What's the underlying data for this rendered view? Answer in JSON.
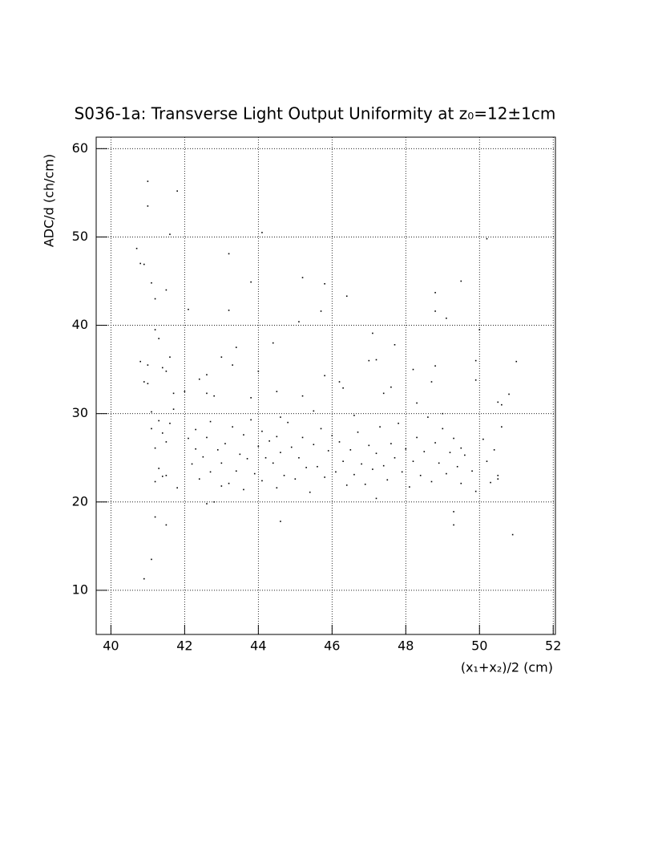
{
  "chart_data": {
    "type": "scatter",
    "title": "S036-1a: Transverse Light Output Uniformity at z₀=12±1cm",
    "xlabel": "(x₁+x₂)/2 (cm)",
    "ylabel": "ADC/d (ch/cm)",
    "color": "#000000",
    "grid": true,
    "xlim": [
      39.6,
      52.06
    ],
    "ylim": [
      5,
      61.3
    ],
    "xticks": [
      40,
      42,
      44,
      46,
      48,
      50,
      52
    ],
    "yticks": [
      10,
      20,
      30,
      40,
      50,
      60
    ],
    "x": [
      41.0,
      41.0,
      41.8,
      41.6,
      40.7,
      40.8,
      40.9,
      41.1,
      41.2,
      41.5,
      42.1,
      43.2,
      43.2,
      43.8,
      44.1,
      45.2,
      45.1,
      45.7,
      45.8,
      46.4,
      48.8,
      48.8,
      49.1,
      49.5,
      50.2,
      50.0,
      41.2,
      41.3,
      40.8,
      40.9,
      41.0,
      41.0,
      41.4,
      41.5,
      41.6,
      41.7,
      41.7,
      41.1,
      41.3,
      41.4,
      41.5,
      41.6,
      41.1,
      41.2,
      41.3,
      41.4,
      41.2,
      41.5,
      41.2,
      41.5,
      41.1,
      40.9,
      41.8,
      42.0,
      42.4,
      42.6,
      42.8,
      42.6,
      43.0,
      43.3,
      43.4,
      43.8,
      44.0,
      44.4,
      44.5,
      44.6,
      45.2,
      45.5,
      45.8,
      46.2,
      46.3,
      46.6,
      47.0,
      47.1,
      47.2,
      47.4,
      47.6,
      47.7,
      48.2,
      48.3,
      48.7,
      48.8,
      49.0,
      49.9,
      49.9,
      50.5,
      50.6,
      51.0,
      50.8,
      49.3,
      49.3,
      50.9,
      44.6,
      42.6,
      43.0,
      42.1,
      42.2,
      42.3,
      42.3,
      42.4,
      42.5,
      42.6,
      42.7,
      42.7,
      42.8,
      42.9,
      43.0,
      43.1,
      43.2,
      43.3,
      43.4,
      43.5,
      43.6,
      43.6,
      43.7,
      43.8,
      43.9,
      44.0,
      44.1,
      44.1,
      44.2,
      44.3,
      44.4,
      44.5,
      44.5,
      44.6,
      44.7,
      44.8,
      44.9,
      45.0,
      45.1,
      45.2,
      45.3,
      45.4,
      45.5,
      45.6,
      45.7,
      45.8,
      45.9,
      46.0,
      46.1,
      46.2,
      46.3,
      46.4,
      46.5,
      46.6,
      46.7,
      46.8,
      46.9,
      47.0,
      47.1,
      47.2,
      47.2,
      47.3,
      47.4,
      47.5,
      47.6,
      47.7,
      47.8,
      47.9,
      48.0,
      48.1,
      48.2,
      48.3,
      48.4,
      48.5,
      48.6,
      48.7,
      48.8,
      48.9,
      49.0,
      49.1,
      49.2,
      49.3,
      49.4,
      49.5,
      49.5,
      49.6,
      49.8,
      49.9,
      50.1,
      50.2,
      50.3,
      50.4,
      50.5,
      50.6,
      50.5
    ],
    "values": [
      56.3,
      53.5,
      55.2,
      50.3,
      48.7,
      47.0,
      46.9,
      44.8,
      43.0,
      44.0,
      41.8,
      48.1,
      41.7,
      44.9,
      50.5,
      45.4,
      40.4,
      41.6,
      44.7,
      43.3,
      43.7,
      41.6,
      40.8,
      45.0,
      49.8,
      39.5,
      39.5,
      38.5,
      35.9,
      33.6,
      33.4,
      35.5,
      35.2,
      34.8,
      36.4,
      32.3,
      30.5,
      30.2,
      29.2,
      27.8,
      26.8,
      28.9,
      28.3,
      26.1,
      23.8,
      22.9,
      22.3,
      23.0,
      18.3,
      17.4,
      13.5,
      11.3,
      21.6,
      32.5,
      33.9,
      32.3,
      32.0,
      34.4,
      36.4,
      35.5,
      37.5,
      31.8,
      34.8,
      38.0,
      32.5,
      29.6,
      32.0,
      30.3,
      34.3,
      33.6,
      32.9,
      29.8,
      36.0,
      39.1,
      36.1,
      32.3,
      33.0,
      37.8,
      35.0,
      31.2,
      33.6,
      35.4,
      30.0,
      36.0,
      33.8,
      31.3,
      31.0,
      35.9,
      32.2,
      18.9,
      17.4,
      16.3,
      17.8,
      19.8,
      21.8,
      27.2,
      24.3,
      26.0,
      28.2,
      22.6,
      25.1,
      27.3,
      23.4,
      29.1,
      20.0,
      25.9,
      24.4,
      26.6,
      22.1,
      28.5,
      23.5,
      25.4,
      27.6,
      21.4,
      24.9,
      29.3,
      23.2,
      26.3,
      22.4,
      28.0,
      25.0,
      26.9,
      24.4,
      21.6,
      27.4,
      25.6,
      23.0,
      29.0,
      26.2,
      22.6,
      25.0,
      27.3,
      23.9,
      21.1,
      26.5,
      24.0,
      28.3,
      22.8,
      25.8,
      27.5,
      23.4,
      26.8,
      24.6,
      21.9,
      25.9,
      23.1,
      27.9,
      24.3,
      22.0,
      26.4,
      23.7,
      25.5,
      20.4,
      28.5,
      24.1,
      22.5,
      26.6,
      25.0,
      28.9,
      23.4,
      26.0,
      21.7,
      24.6,
      27.3,
      23.0,
      25.7,
      29.6,
      22.3,
      26.7,
      24.4,
      28.3,
      23.2,
      25.6,
      27.2,
      24.0,
      26.1,
      22.1,
      25.3,
      23.5,
      21.2,
      27.1,
      24.6,
      22.2,
      25.9,
      23.0,
      28.5,
      22.6
    ]
  }
}
